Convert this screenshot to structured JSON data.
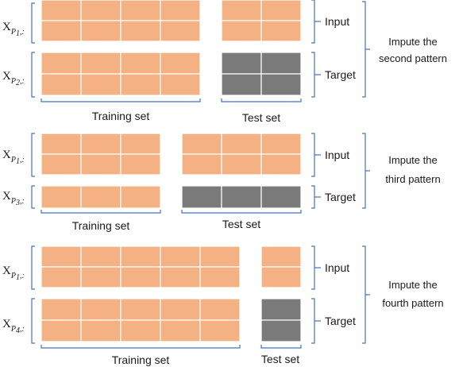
{
  "colors": {
    "observed": "#f4b183",
    "missing": "#7a7a7a",
    "bracket": "#4472c4",
    "grid_line": "#ffffff"
  },
  "panels": [
    {
      "x_input": {
        "base": "X",
        "sub_var": "P",
        "sub_idx": "1",
        "sub_tail": ",:"
      },
      "x_target": {
        "base": "X",
        "sub_var": "P",
        "sub_idx": "2",
        "sub_tail": ",:"
      },
      "input_label": "Input",
      "target_label": "Target",
      "training_label": "Training set",
      "test_label": "Test set",
      "impute_line1": "Impute the",
      "impute_line2": "second pattern"
    },
    {
      "x_input": {
        "base": "X",
        "sub_var": "P",
        "sub_idx": "1",
        "sub_tail": ",:"
      },
      "x_target": {
        "base": "X",
        "sub_var": "P",
        "sub_idx": "3",
        "sub_tail": ",:"
      },
      "input_label": "Input",
      "target_label": "Target",
      "training_label": "Training set",
      "test_label": "Test set",
      "impute_line1": "Impute the",
      "impute_line2": "third pattern"
    },
    {
      "x_input": {
        "base": "X",
        "sub_var": "P",
        "sub_idx": "1",
        "sub_tail": ",:"
      },
      "x_target": {
        "base": "X",
        "sub_var": "P",
        "sub_idx": "4",
        "sub_tail": ",:"
      },
      "input_label": "Input",
      "target_label": "Target",
      "training_label": "Training set",
      "test_label": "Test set",
      "impute_line1": "Impute the",
      "impute_line2": "fourth pattern"
    }
  ]
}
